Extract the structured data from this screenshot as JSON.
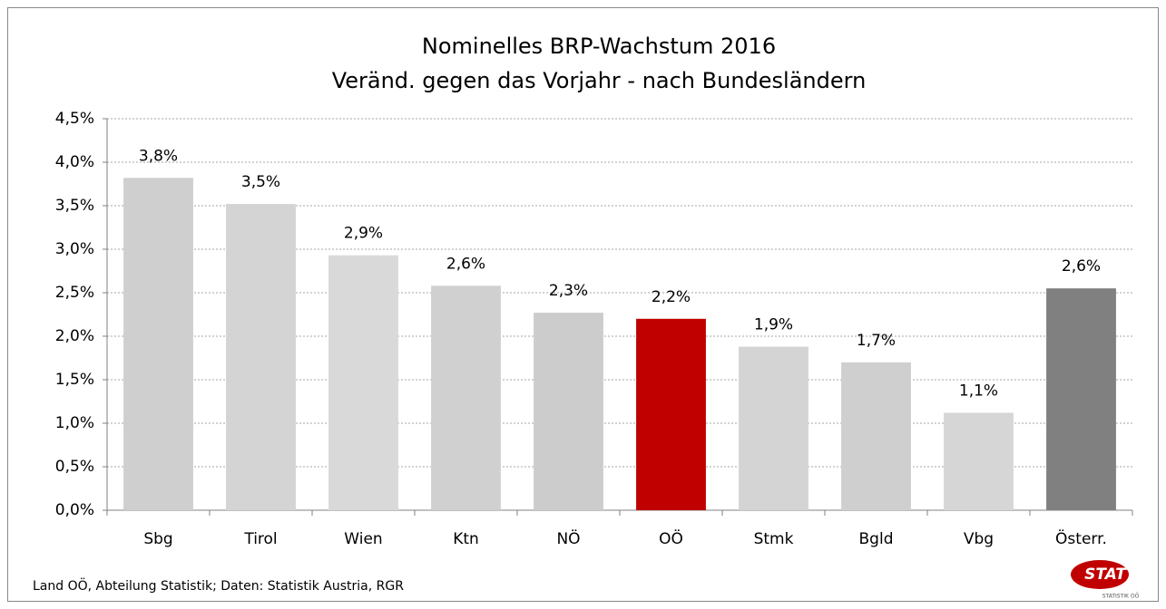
{
  "chart_data": {
    "type": "bar",
    "title": "Nominelles BRP-Wachstum 2016",
    "subtitle": "Veränd. gegen das Vorjahr - nach Bundesländern",
    "categories": [
      "Sbg",
      "Tirol",
      "Wien",
      "Ktn",
      "NÖ",
      "OÖ",
      "Stmk",
      "Bgld",
      "Vbg",
      "Österr."
    ],
    "values": [
      3.82,
      3.52,
      2.93,
      2.58,
      2.27,
      2.2,
      1.88,
      1.7,
      1.12,
      2.55
    ],
    "value_labels": [
      "3,8%",
      "3,5%",
      "2,9%",
      "2,6%",
      "2,3%",
      "2,2%",
      "1,9%",
      "1,7%",
      "1,1%",
      "2,6%"
    ],
    "colors": [
      "#cfcfcf",
      "#d4d4d4",
      "#d9d9d9",
      "#d0d0d0",
      "#cccccc",
      "#c00000",
      "#d4d4d4",
      "#cfcfcf",
      "#d6d6d6",
      "#808080"
    ],
    "ylim": [
      0,
      4.5
    ],
    "yticks": [
      {
        "value": 0,
        "label": "0,0%"
      },
      {
        "value": 0.5,
        "label": "0,5%"
      },
      {
        "value": 1,
        "label": "1,0%"
      },
      {
        "value": 1.5,
        "label": "1,5%"
      },
      {
        "value": 2,
        "label": "2,0%"
      },
      {
        "value": 2.5,
        "label": "2,5%"
      },
      {
        "value": 3,
        "label": "3,0%"
      },
      {
        "value": 3.5,
        "label": "3,5%"
      },
      {
        "value": 4,
        "label": "4,0%"
      },
      {
        "value": 4.5,
        "label": "4,5%"
      }
    ],
    "grid": true,
    "source": "Land OÖ, Abteilung Statistik; Daten: Statistik Austria, RGR",
    "logo": {
      "text": "STAT",
      "subtext": "STATISTIK OÖ"
    }
  }
}
